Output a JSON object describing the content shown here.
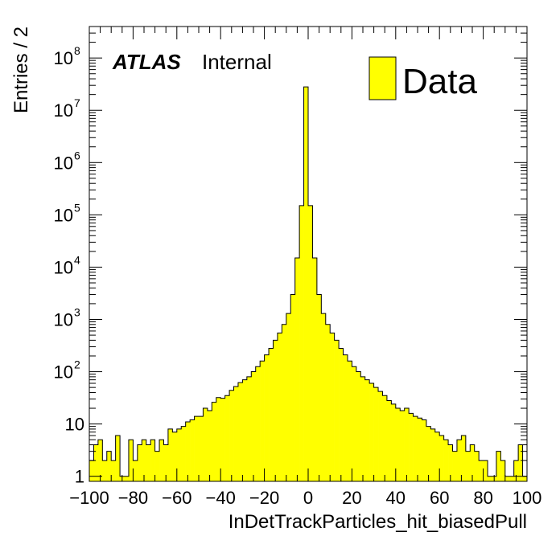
{
  "chart_data": {
    "type": "bar",
    "histogram": true,
    "log_y": true,
    "xlabel": "InDetTrackParticles_hit_biasedPull",
    "ylabel": "Entries / 2",
    "xlim": [
      -100,
      100
    ],
    "ylim": [
      0.8,
      400000000
    ],
    "bin_width": 2,
    "x_ticks": [
      -100,
      -80,
      -60,
      -40,
      -20,
      0,
      20,
      40,
      60,
      80,
      100
    ],
    "x_tick_labels": [
      "−100",
      "−80",
      "−60",
      "−40",
      "−20",
      "0",
      "20",
      "40",
      "60",
      "80",
      "100"
    ],
    "y_tick_values": [
      1,
      10,
      100,
      1000,
      10000,
      100000,
      1000000,
      10000000,
      100000000
    ],
    "y_tick_labels": [
      {
        "base": "1",
        "exp": ""
      },
      {
        "base": "10",
        "exp": ""
      },
      {
        "base": "10",
        "exp": "2"
      },
      {
        "base": "10",
        "exp": "3"
      },
      {
        "base": "10",
        "exp": "4"
      },
      {
        "base": "10",
        "exp": "5"
      },
      {
        "base": "10",
        "exp": "6"
      },
      {
        "base": "10",
        "exp": "7"
      },
      {
        "base": "10",
        "exp": "8"
      }
    ],
    "annotation_bold": "ATLAS",
    "annotation_text": "Internal",
    "legend": {
      "label": "Data",
      "color": "#ffff00",
      "position": "top-right"
    },
    "fill_color": "#ffff00",
    "line_color": "#000000",
    "bin_edges_start": -100,
    "values": [
      2,
      4,
      5,
      2,
      3,
      2,
      6,
      1,
      1,
      5,
      2,
      4,
      5,
      4,
      5,
      3,
      5,
      4,
      8,
      7,
      8,
      9,
      11,
      12,
      14,
      14,
      20,
      18,
      26,
      32,
      31,
      35,
      44,
      52,
      62,
      70,
      80,
      100,
      125,
      160,
      210,
      280,
      400,
      550,
      800,
      1300,
      3000,
      15000,
      150000,
      28000000,
      150000,
      15000,
      3000,
      1300,
      800,
      550,
      400,
      280,
      210,
      160,
      125,
      100,
      80,
      70,
      60,
      50,
      42,
      35,
      28,
      24,
      20,
      18,
      20,
      16,
      14,
      13,
      12,
      9,
      8,
      7,
      6,
      5,
      4,
      3,
      5,
      6,
      3,
      4,
      3,
      2,
      2,
      1,
      1,
      3,
      2,
      1,
      1,
      2,
      4,
      1
    ]
  }
}
